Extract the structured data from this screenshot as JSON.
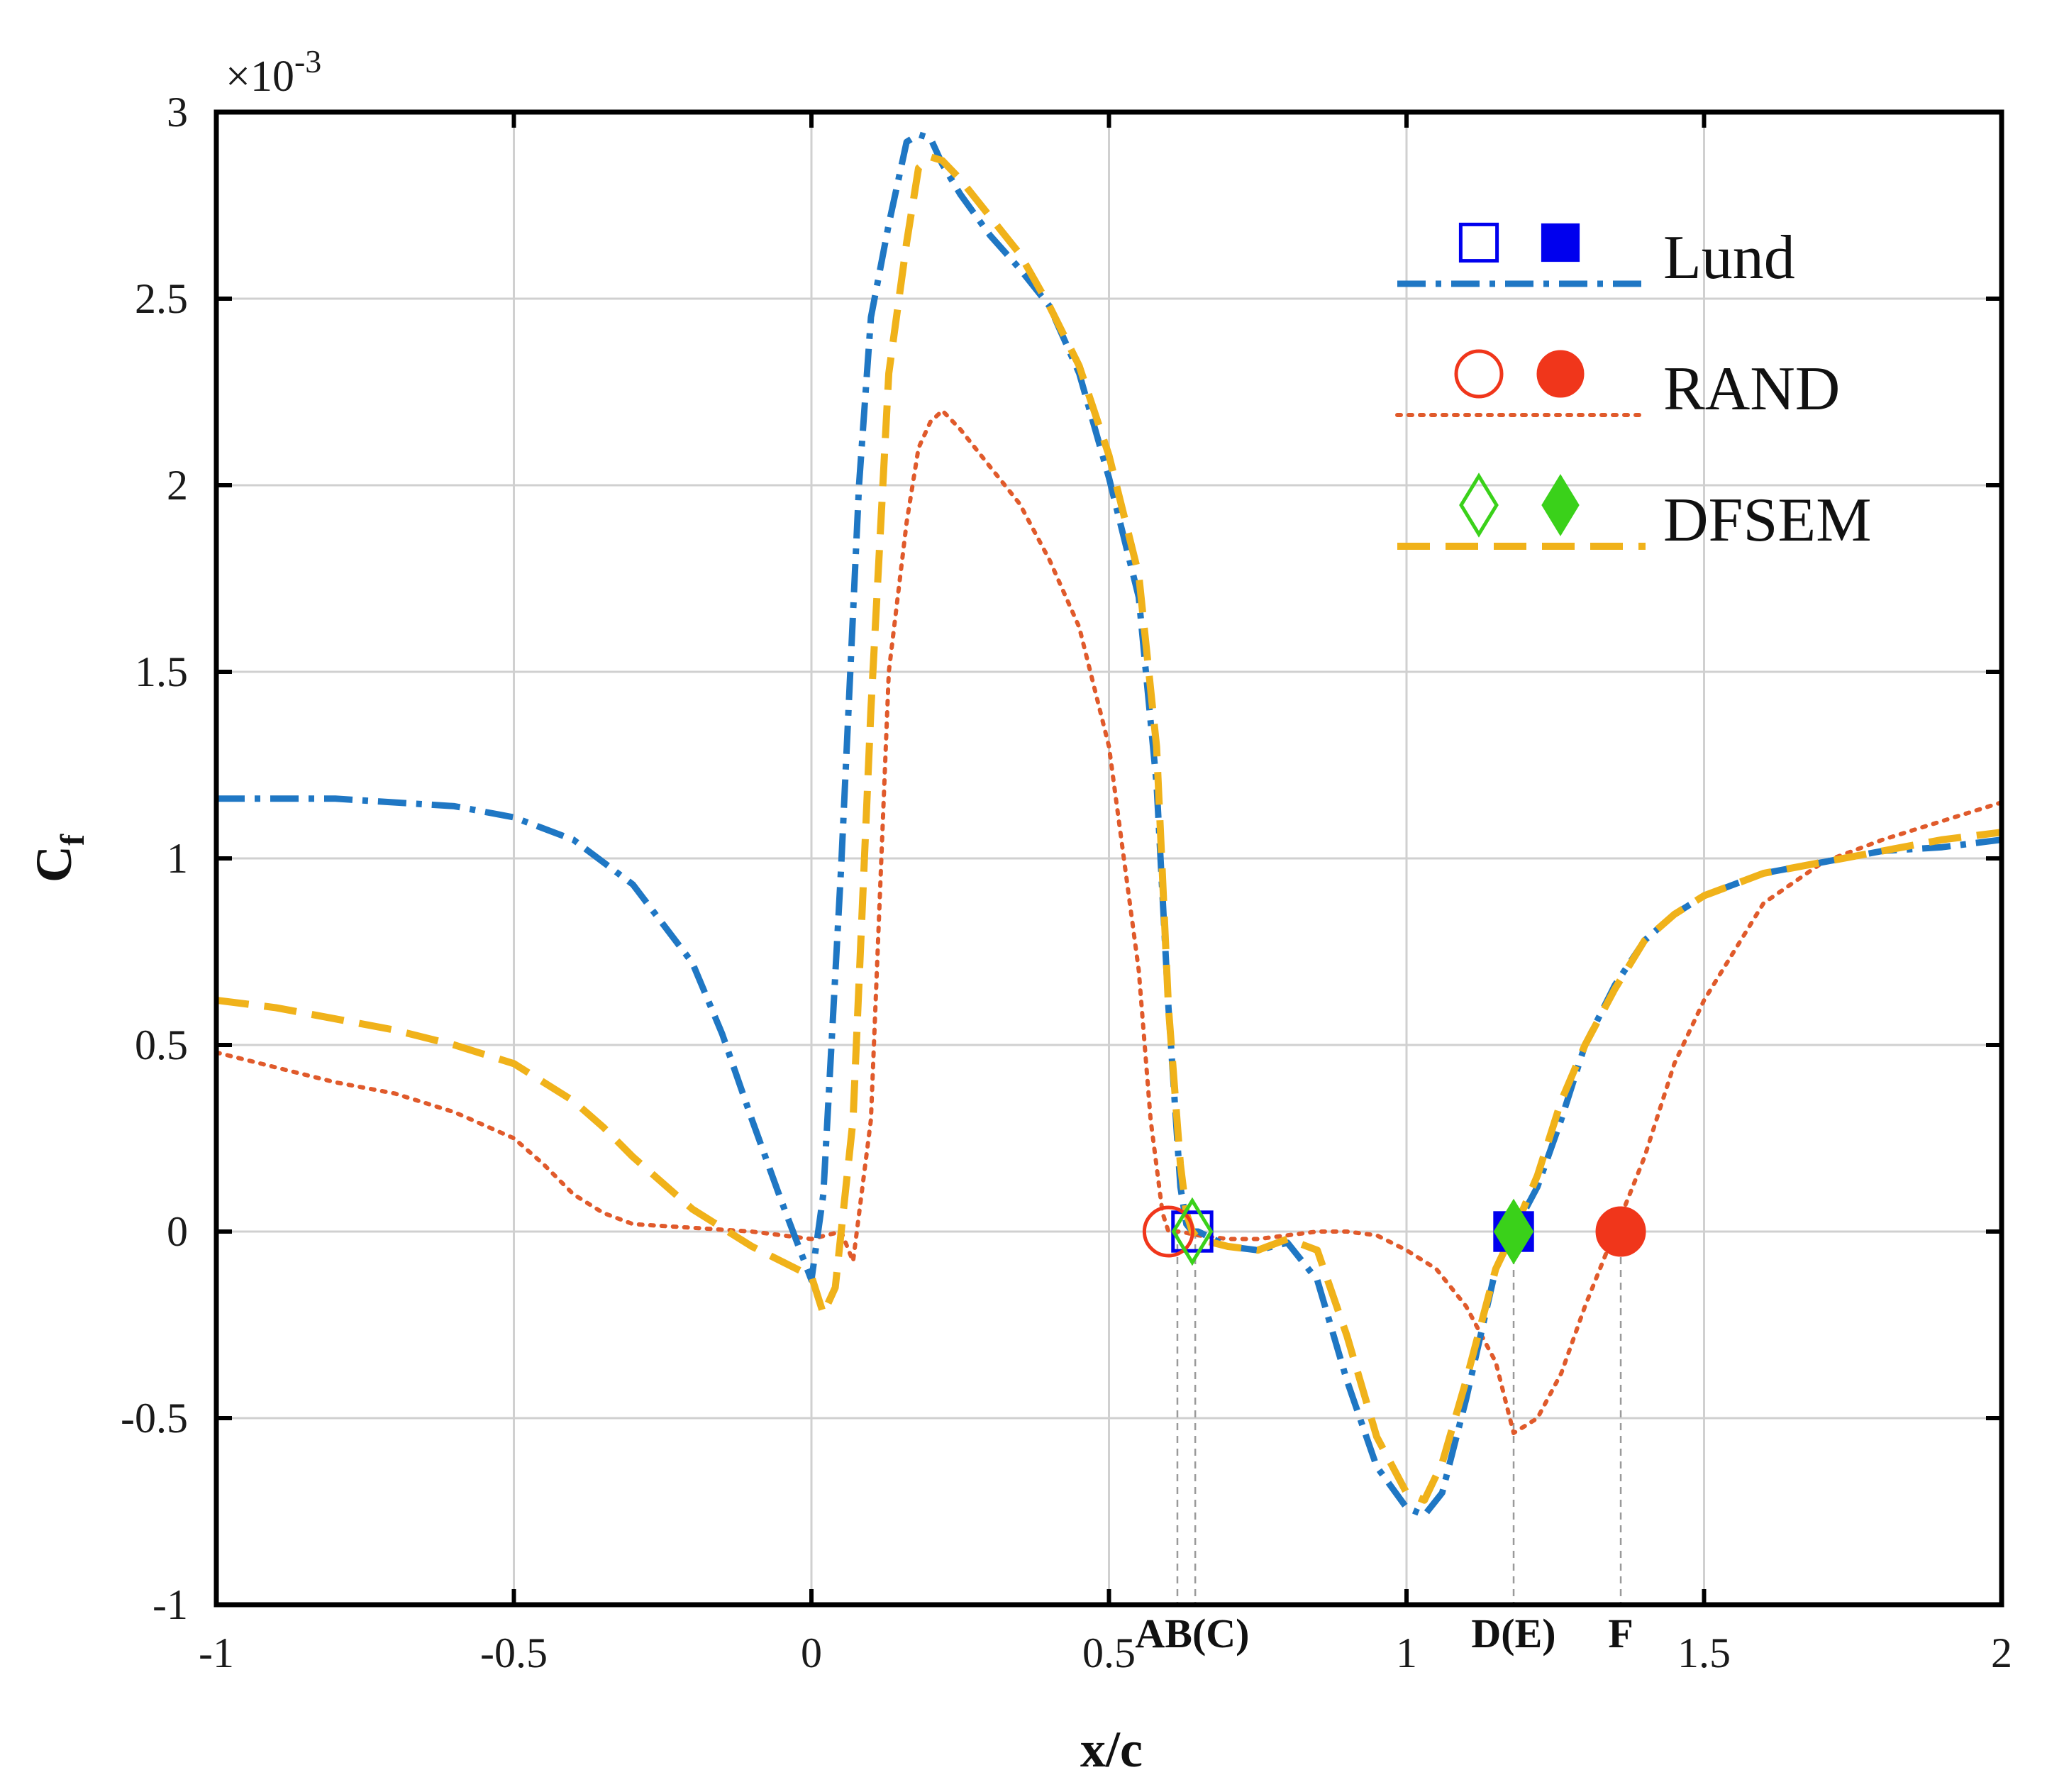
{
  "chart_data": {
    "type": "line",
    "title": "",
    "xlabel": "x/c",
    "ylabel": "C",
    "ylabel_subscript": "f",
    "y_multiplier": "×10",
    "y_multiplier_exponent": "-3",
    "xlim": [
      -1,
      2
    ],
    "ylim": [
      -1,
      3
    ],
    "grid": true,
    "xticks": [
      -1,
      -0.5,
      0,
      0.5,
      1,
      1.5,
      2
    ],
    "xtick_labels": [
      "-1",
      "-0.5",
      "0",
      "0.5",
      "1",
      "1.5",
      "2"
    ],
    "yticks": [
      -1,
      -0.5,
      0,
      0.5,
      1,
      1.5,
      2,
      2.5,
      3
    ],
    "ytick_labels": [
      "-1",
      "-0.5",
      "0",
      "0.5",
      "1",
      "1.5",
      "2",
      "2.5",
      "3"
    ],
    "legend_position": "top-right",
    "series": [
      {
        "name": "Lund",
        "color": "#1f77c4",
        "dash": "dashdot",
        "marker_open": "square",
        "marker_filled": "square",
        "marker_color": "#0000ee",
        "x": [
          -1,
          -0.9,
          -0.8,
          -0.7,
          -0.6,
          -0.5,
          -0.4,
          -0.3,
          -0.2,
          -0.15,
          -0.1,
          -0.05,
          0,
          0.02,
          0.05,
          0.08,
          0.1,
          0.13,
          0.16,
          0.18,
          0.2,
          0.22,
          0.25,
          0.3,
          0.35,
          0.4,
          0.45,
          0.5,
          0.55,
          0.58,
          0.6,
          0.62,
          0.63,
          0.64,
          0.65,
          0.7,
          0.75,
          0.8,
          0.85,
          0.9,
          0.95,
          1.0,
          1.03,
          1.06,
          1.1,
          1.15,
          1.18,
          1.22,
          1.26,
          1.3,
          1.35,
          1.4,
          1.45,
          1.5,
          1.6,
          1.7,
          1.8,
          1.9,
          2.0
        ],
        "values": [
          1.16,
          1.16,
          1.16,
          1.15,
          1.14,
          1.11,
          1.05,
          0.93,
          0.72,
          0.53,
          0.3,
          0.08,
          -0.13,
          0.1,
          0.98,
          2.0,
          2.45,
          2.7,
          2.92,
          2.94,
          2.93,
          2.86,
          2.78,
          2.67,
          2.58,
          2.48,
          2.3,
          2.02,
          1.7,
          1.2,
          0.6,
          0.12,
          0.02,
          0.0,
          0.0,
          -0.04,
          -0.05,
          -0.03,
          -0.13,
          -0.4,
          -0.63,
          -0.74,
          -0.76,
          -0.7,
          -0.45,
          -0.1,
          0.0,
          0.12,
          0.3,
          0.5,
          0.66,
          0.78,
          0.85,
          0.9,
          0.96,
          0.99,
          1.02,
          1.03,
          1.05
        ]
      },
      {
        "name": "RAND",
        "color": "#e05a2b",
        "dash": "dot",
        "marker_open": "circle",
        "marker_filled": "circle",
        "marker_color": "#f0361b",
        "x": [
          -1,
          -0.9,
          -0.8,
          -0.7,
          -0.6,
          -0.5,
          -0.45,
          -0.4,
          -0.35,
          -0.3,
          -0.2,
          -0.1,
          0,
          0.05,
          0.07,
          0.1,
          0.13,
          0.16,
          0.18,
          0.2,
          0.22,
          0.25,
          0.3,
          0.35,
          0.4,
          0.45,
          0.5,
          0.55,
          0.57,
          0.59,
          0.6,
          0.62,
          0.65,
          0.7,
          0.75,
          0.8,
          0.85,
          0.9,
          0.95,
          1.0,
          1.05,
          1.1,
          1.15,
          1.18,
          1.22,
          1.26,
          1.3,
          1.35,
          1.4,
          1.45,
          1.5,
          1.6,
          1.7,
          1.8,
          1.9,
          2.0
        ],
        "values": [
          0.48,
          0.44,
          0.4,
          0.37,
          0.32,
          0.25,
          0.18,
          0.1,
          0.05,
          0.02,
          0.01,
          0.0,
          -0.02,
          0.0,
          -0.08,
          0.3,
          1.5,
          1.9,
          2.1,
          2.17,
          2.2,
          2.15,
          2.05,
          1.95,
          1.8,
          1.62,
          1.3,
          0.7,
          0.3,
          0.05,
          0.0,
          0.0,
          -0.01,
          -0.02,
          -0.02,
          -0.01,
          0.0,
          0.0,
          -0.01,
          -0.05,
          -0.1,
          -0.2,
          -0.35,
          -0.54,
          -0.5,
          -0.38,
          -0.2,
          0.0,
          0.2,
          0.45,
          0.62,
          0.88,
          0.99,
          1.05,
          1.1,
          1.15
        ]
      },
      {
        "name": "DFSEM",
        "color": "#f0b21a",
        "dash": "dash",
        "marker_open": "diamond",
        "marker_filled": "diamond",
        "marker_color": "#3ad11a",
        "x": [
          -1,
          -0.9,
          -0.8,
          -0.7,
          -0.6,
          -0.5,
          -0.45,
          -0.4,
          -0.35,
          -0.3,
          -0.2,
          -0.1,
          0,
          0.02,
          0.04,
          0.07,
          0.1,
          0.13,
          0.16,
          0.18,
          0.2,
          0.22,
          0.25,
          0.3,
          0.35,
          0.4,
          0.45,
          0.5,
          0.55,
          0.58,
          0.6,
          0.62,
          0.63,
          0.64,
          0.65,
          0.7,
          0.75,
          0.8,
          0.85,
          0.9,
          0.95,
          1.0,
          1.03,
          1.06,
          1.1,
          1.15,
          1.18,
          1.22,
          1.26,
          1.3,
          1.35,
          1.4,
          1.45,
          1.5,
          1.6,
          1.7,
          1.8,
          1.9,
          2.0
        ],
        "values": [
          0.62,
          0.6,
          0.57,
          0.54,
          0.5,
          0.45,
          0.4,
          0.35,
          0.28,
          0.2,
          0.06,
          -0.04,
          -0.12,
          -0.22,
          -0.15,
          0.3,
          1.4,
          2.3,
          2.65,
          2.85,
          2.88,
          2.87,
          2.82,
          2.72,
          2.62,
          2.48,
          2.32,
          2.08,
          1.76,
          1.3,
          0.6,
          0.18,
          0.05,
          0.0,
          -0.02,
          -0.04,
          -0.05,
          -0.02,
          -0.05,
          -0.28,
          -0.55,
          -0.7,
          -0.72,
          -0.62,
          -0.4,
          -0.1,
          0.0,
          0.15,
          0.35,
          0.5,
          0.65,
          0.78,
          0.85,
          0.9,
          0.96,
          0.99,
          1.02,
          1.05,
          1.07
        ]
      }
    ],
    "event_points": [
      {
        "series": "Lund",
        "style": "open",
        "x": 0.64,
        "y": 0
      },
      {
        "series": "RAND",
        "style": "open",
        "x": 0.6,
        "y": 0
      },
      {
        "series": "DFSEM",
        "style": "open",
        "x": 0.64,
        "y": 0
      },
      {
        "series": "Lund",
        "style": "filled",
        "x": 1.18,
        "y": 0
      },
      {
        "series": "DFSEM",
        "style": "filled",
        "x": 1.18,
        "y": 0
      },
      {
        "series": "RAND",
        "style": "filled",
        "x": 1.36,
        "y": 0
      }
    ],
    "reference_lines": [
      {
        "x": 0.615
      },
      {
        "x": 0.645
      },
      {
        "x": 1.18
      },
      {
        "x": 1.36
      }
    ],
    "annotations": [
      {
        "text": "AB(C)",
        "x": 0.64
      },
      {
        "text": "D(E)",
        "x": 1.18
      },
      {
        "text": "F",
        "x": 1.36
      }
    ]
  }
}
